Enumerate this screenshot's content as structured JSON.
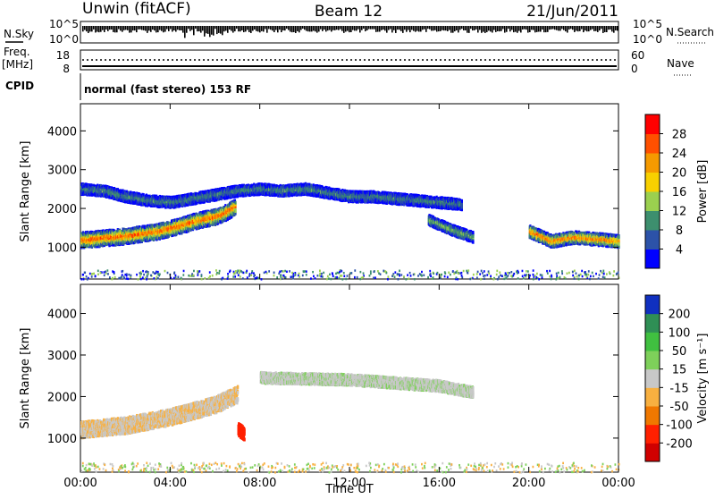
{
  "header": {
    "station": "Unwin (fitACF)",
    "beam": "Beam 12",
    "date": "21/Jun/2011"
  },
  "aux": {
    "nsky_label": "N.Sky",
    "nsky_ticks": [
      "10^5",
      "10^0"
    ],
    "nsearch_label": "N.Search",
    "nsearch_ticks": [
      "10^5",
      "10^0"
    ],
    "freq_label": "Freq.",
    "freq_unit": "[MHz]",
    "freq_ticks": [
      "18",
      "8"
    ],
    "nave_label": "Nave",
    "nave_ticks": [
      "60",
      "0"
    ],
    "cpid_label": "CPID",
    "cpid_value": "normal (fast stereo) 153 RF"
  },
  "colors": {
    "power": [
      "#0000ff",
      "#2c52a8",
      "#3d8f6e",
      "#9bd04f",
      "#f8d000",
      "#f59a00",
      "#ff5000",
      "#ff0000"
    ],
    "velocity": [
      "#1030c0",
      "#2f8f55",
      "#40c040",
      "#7ed05a",
      "#c8c8c8",
      "#f8b040",
      "#f07800",
      "#ff2000",
      "#d00000"
    ]
  },
  "chart_data": [
    {
      "type": "heatmap",
      "title": "Power",
      "xlabel": "Time UT",
      "ylabel": "Slant Range [km]",
      "xticks": [
        "00:00",
        "04:00",
        "08:00",
        "12:00",
        "16:00",
        "20:00",
        "00:00"
      ],
      "xlim_hours": [
        0,
        24
      ],
      "ylim": [
        180,
        4700
      ],
      "yticks": [
        1000,
        2000,
        3000,
        4000
      ],
      "colorbar": {
        "label": "Power [dB]",
        "ticks": [
          "4",
          "8",
          "12",
          "16",
          "20",
          "24",
          "28"
        ],
        "range": [
          0,
          32
        ]
      },
      "features": [
        {
          "t": [
            0.0,
            0.5,
            1.0,
            1.5,
            2.0,
            2.5,
            3.0,
            3.5,
            4.0,
            4.5,
            5.0,
            5.5,
            6.0,
            6.5,
            6.9
          ],
          "r": [
            1180,
            1200,
            1230,
            1250,
            1280,
            1320,
            1360,
            1410,
            1480,
            1560,
            1650,
            1720,
            1780,
            1900,
            2050
          ],
          "width": 380,
          "peak": 27
        },
        {
          "t": [
            0.0,
            1.0,
            2.0,
            3.0,
            4.0,
            5.0,
            6.0,
            7.0,
            8.0,
            9.0,
            10.0,
            11.0,
            12.0,
            13.0,
            14.0,
            15.0,
            16.0,
            17.0
          ],
          "r": [
            2500,
            2450,
            2300,
            2200,
            2150,
            2250,
            2350,
            2450,
            2500,
            2450,
            2500,
            2400,
            2300,
            2300,
            2250,
            2200,
            2150,
            2100
          ],
          "width": 260,
          "peak": 10
        },
        {
          "t": [
            20.0,
            21.0,
            22.0,
            23.0,
            24.0
          ],
          "r": [
            1400,
            1150,
            1250,
            1200,
            1150
          ],
          "width": 300,
          "peak": 26
        },
        {
          "t": [
            15.5,
            16.5,
            17.5
          ],
          "r": [
            1700,
            1450,
            1250
          ],
          "width": 250,
          "peak": 14
        }
      ]
    },
    {
      "type": "heatmap",
      "title": "Velocity",
      "xlabel": "Time UT",
      "ylabel": "Slant Range [km]",
      "xticks": [
        "00:00",
        "04:00",
        "08:00",
        "12:00",
        "16:00",
        "20:00",
        "00:00"
      ],
      "xlim_hours": [
        0,
        24
      ],
      "ylim": [
        180,
        4700
      ],
      "yticks": [
        1000,
        2000,
        3000,
        4000
      ],
      "colorbar": {
        "label": "Velocity [m s⁻¹]",
        "ticks": [
          "200",
          "100",
          "50",
          "15",
          "-15",
          "-50",
          "-100",
          "-200"
        ],
        "range": [
          -250,
          250
        ]
      },
      "features": [
        {
          "t": [
            0.0,
            1.0,
            2.0,
            3.0,
            4.0,
            5.0,
            6.0,
            7.0
          ],
          "r": [
            1200,
            1250,
            1300,
            1400,
            1500,
            1650,
            1800,
            2050
          ],
          "width": 380,
          "v": -10
        },
        {
          "t": [
            7.0,
            7.3
          ],
          "r": [
            1200,
            1100
          ],
          "width": 300,
          "v": -180
        },
        {
          "t": [
            8.0,
            12.0,
            16.0,
            17.5
          ],
          "r": [
            2450,
            2400,
            2250,
            2100
          ],
          "width": 250,
          "v": 5
        }
      ]
    }
  ]
}
